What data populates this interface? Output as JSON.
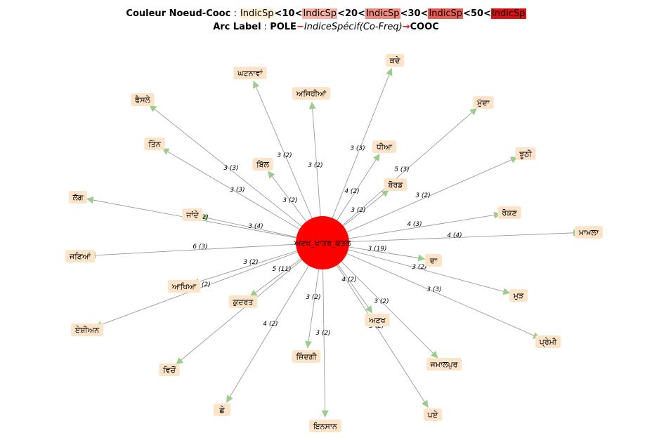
{
  "legend": {
    "line1_label": "Couleur Noeud-Cooc",
    "sep": " : ",
    "sw_text": "IndicSp",
    "lt": "<",
    "t10": "10",
    "t20": "20",
    "t30": "30",
    "t50": "50",
    "line2_label": "Arc Label",
    "pole": "POLE",
    "dash": "−",
    "indice": "IndiceSpécif(Co-Freq)",
    "arrow": "→",
    "cooc": "COOC",
    "colors": {
      "lt10": "#fff1d6",
      "lt20": "#f7b2a8",
      "lt30": "#ef8a7e",
      "lt50": "#e85a52",
      "ge50": "#dd1111"
    }
  },
  "center": {
    "label": "ਅਣਖ_ਖਾਤਰ_ਕਤਲ",
    "color": "#ff0000"
  },
  "nodes": [
    {
      "name": "node-ghatnavan",
      "label": "ਘਟਨਾਵਾਂ",
      "edge_label": "3 (2)"
    },
    {
      "name": "node-kade",
      "label": "ਕਦੇ",
      "edge_label": "3 (3)"
    },
    {
      "name": "node-ajihian",
      "label": "ਅਜਿਹੀਆਂ",
      "edge_label": "3 (2)"
    },
    {
      "name": "node-faisle",
      "label": "ਫੈਸਲੇ",
      "edge_label": "3 (3)"
    },
    {
      "name": "node-mudda",
      "label": "ਮੁੱਦਾ",
      "edge_label": "5 (3)"
    },
    {
      "name": "node-tinn",
      "label": "ਤਿੰਨ",
      "edge_label": "3 (3)"
    },
    {
      "name": "node-dhia",
      "label": "ਧੀਆ",
      "edge_label": "4 (2)"
    },
    {
      "name": "node-jhuthi",
      "label": "ਝੂਠੀ",
      "edge_label": "3 (2)"
    },
    {
      "name": "node-bill",
      "label": "ਬਿੱਲ",
      "edge_label": "3 (2)"
    },
    {
      "name": "node-board",
      "label": "ਬੋਰਡ",
      "edge_label": "3 (2)"
    },
    {
      "name": "node-lagg",
      "label": "ਲੱਗ",
      "edge_label": "3 (4)"
    },
    {
      "name": "node-rokan",
      "label": "ਰੋਕਣ",
      "edge_label": "4 (3)"
    },
    {
      "name": "node-jandhe",
      "label": "ਜਾਂਦੇ",
      "edge_label": "3 (2)"
    },
    {
      "name": "node-mamla",
      "label": "ਮਾਮਲਾ",
      "edge_label": "4 (4)"
    },
    {
      "name": "node-janian",
      "label": "ਜਣਿਆਂ",
      "edge_label": "6 (3)"
    },
    {
      "name": "node-da",
      "label": "ਦਾ",
      "edge_label": "3 (19)"
    },
    {
      "name": "node-akhia",
      "label": "ਆਖਿਆ",
      "edge_label": "4 (2)"
    },
    {
      "name": "node-mur",
      "label": "ਮੁੜ",
      "edge_label": "3 (2)"
    },
    {
      "name": "node-kudran",
      "label": "ਕੁਦਰਤ",
      "edge_label": "3 (2)"
    },
    {
      "name": "node-anakh",
      "label": "ਅਣਖ",
      "edge_label": "3 (2)"
    },
    {
      "name": "node-premi",
      "label": "ਪ੍ਰੇਮੀ",
      "edge_label": "3 (3)"
    },
    {
      "name": "node-eshian",
      "label": "ਏਸ਼ੀਅਨ",
      "edge_label": "3 (2)"
    },
    {
      "name": "node-zindagi",
      "label": "ਜ਼ਿੰਦਗੀ",
      "edge_label": "3 (2)"
    },
    {
      "name": "node-jamalpur",
      "label": "ਜਮਾਲਪੁਰ",
      "edge_label": "4 (2)"
    },
    {
      "name": "node-vichon",
      "label": "ਵਿਚੋਂ",
      "edge_label": "5 (11)"
    },
    {
      "name": "node-chhe",
      "label": "ਛੇ",
      "edge_label": "4 (2)"
    },
    {
      "name": "node-insan",
      "label": "ਇਨਸਾਨ",
      "edge_label": "3 (2)"
    },
    {
      "name": "node-pae",
      "label": "ਪਏ",
      "edge_label": "3 (2)"
    }
  ]
}
